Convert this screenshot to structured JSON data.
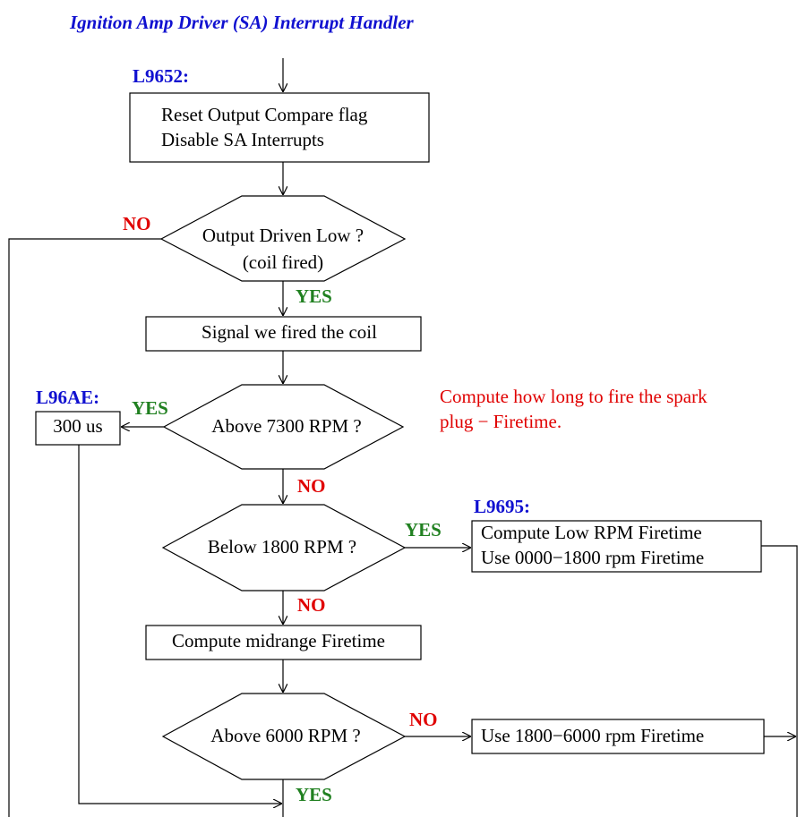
{
  "title": "Ignition Amp Driver (SA) Interrupt Handler",
  "labels": [
    "L9652:",
    "L96AE:",
    "L9695:"
  ],
  "note": [
    "Compute how long to fire the spark",
    "plug − Firetime."
  ],
  "nodes": [
    {
      "lines": [
        "Reset Output Compare flag",
        "Disable SA  Interrupts"
      ]
    },
    {
      "lines": [
        "Output Driven Low ?",
        "(coil fired)"
      ]
    },
    {
      "lines": [
        "Signal we fired the coil"
      ]
    },
    {
      "lines": [
        "Above 7300 RPM ?"
      ]
    },
    {
      "lines": [
        "300 us"
      ]
    },
    {
      "lines": [
        "Below 1800 RPM ?"
      ]
    },
    {
      "lines": [
        "Compute Low RPM  Firetime",
        "Use 0000−1800 rpm  Firetime"
      ]
    },
    {
      "lines": [
        "Compute midrange Firetime"
      ]
    },
    {
      "lines": [
        "Above 6000 RPM ?"
      ]
    },
    {
      "lines": [
        "Use 1800−6000  rpm Firetime"
      ]
    }
  ],
  "edges": [
    "NO",
    "YES",
    "YES",
    "NO",
    "YES",
    "NO",
    "NO",
    "YES"
  ]
}
